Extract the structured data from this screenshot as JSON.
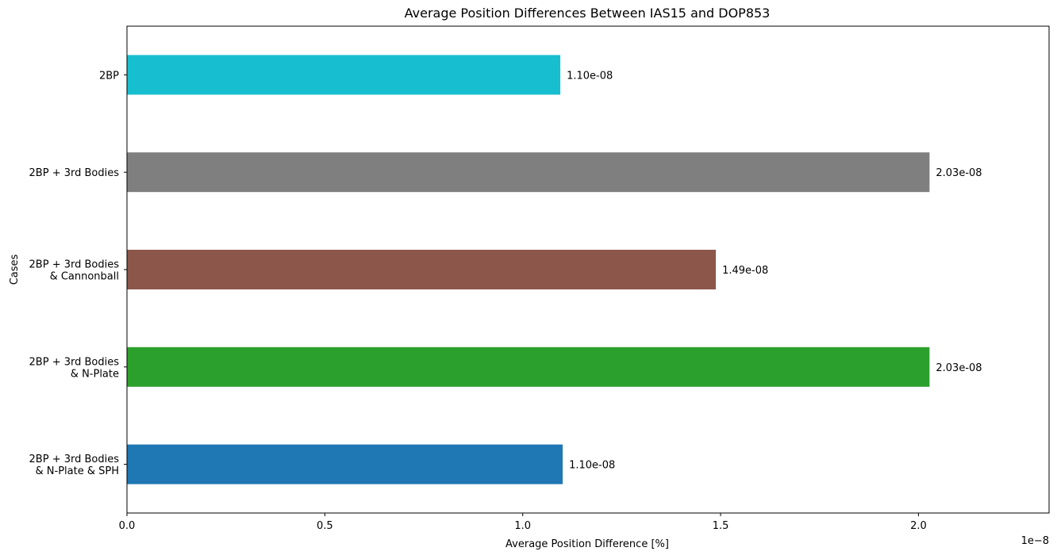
{
  "chart_data": {
    "type": "bar",
    "orientation": "horizontal",
    "title": "Average Position Differences Between IAS15 and DOP853",
    "xlabel": "Average Position Difference [%]",
    "ylabel": "Cases",
    "x_offset_label": "1e−8",
    "x_scale": 1e-08,
    "xlim": [
      0,
      2.33
    ],
    "x_ticks": [
      0,
      0.5,
      1.0,
      1.5,
      2.0
    ],
    "x_tick_labels": [
      "0.0",
      "0.5",
      "1.0",
      "1.5",
      "2.0"
    ],
    "grid": false,
    "categories": [
      [
        "2BP"
      ],
      [
        "2BP + 3rd Bodies"
      ],
      [
        "2BP + 3rd Bodies",
        "& Cannonball"
      ],
      [
        "2BP + 3rd Bodies",
        "& N-Plate"
      ],
      [
        "2BP + 3rd Bodies",
        "& N-Plate & SPH"
      ]
    ],
    "values": [
      1.095e-08,
      2.028e-08,
      1.488e-08,
      2.028e-08,
      1.101e-08
    ],
    "value_labels": [
      "1.10e-08",
      "2.03e-08",
      "1.49e-08",
      "2.03e-08",
      "1.10e-08"
    ],
    "colors": [
      "#17becf",
      "#7f7f7f",
      "#8c564b",
      "#2ca02c",
      "#1f77b4"
    ]
  }
}
